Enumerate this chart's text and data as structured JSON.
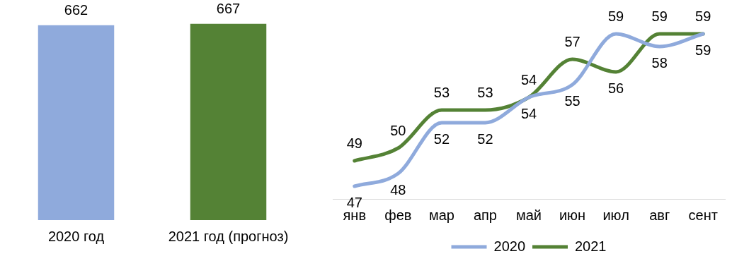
{
  "chart_data": [
    {
      "type": "bar",
      "categories": [
        "2020 год",
        "2021 год (прогноз)"
      ],
      "values": [
        662,
        667
      ],
      "colors": [
        "#8faadc",
        "#548235"
      ],
      "data_labels": true,
      "tick_labels": "x",
      "grid": false,
      "legend": false
    },
    {
      "type": "line",
      "categories": [
        "янв",
        "фев",
        "мар",
        "апр",
        "май",
        "июн",
        "июл",
        "авг",
        "сент"
      ],
      "series": [
        {
          "name": "2020",
          "color": "#8faadc",
          "values": [
            47,
            48,
            52,
            52,
            54,
            55,
            59,
            58,
            59
          ]
        },
        {
          "name": "2021",
          "color": "#548235",
          "values": [
            49,
            50,
            53,
            53,
            54,
            57,
            56,
            59,
            59
          ]
        }
      ],
      "data_labels": true,
      "tick_labels": "x",
      "grid": false,
      "legend": "bottom",
      "marker": "none",
      "line_style": "solid"
    }
  ]
}
